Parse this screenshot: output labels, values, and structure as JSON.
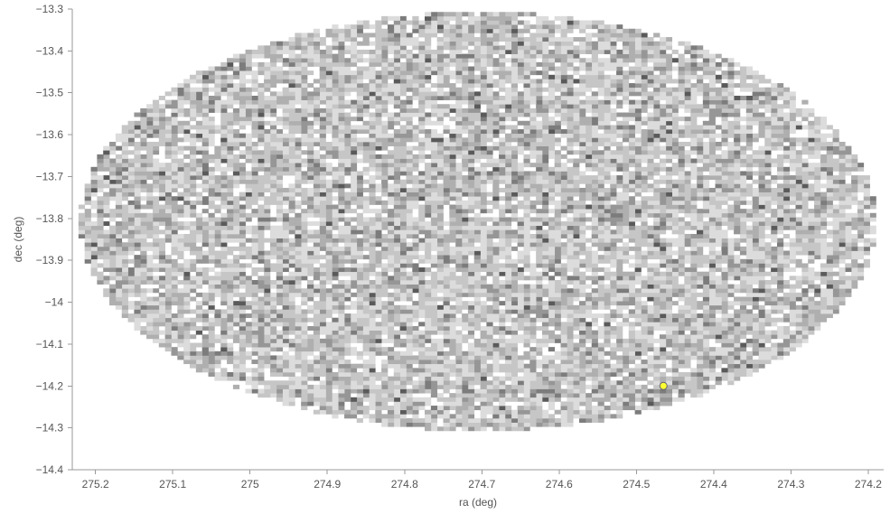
{
  "chart_data": {
    "type": "heatmap",
    "subtype": "binned-scatter-density",
    "title": "",
    "xlabel": "ra (deg)",
    "ylabel": "dec (deg)",
    "xlim": [
      275.23,
      274.18
    ],
    "ylim": [
      -14.4,
      -13.3
    ],
    "x_reversed": true,
    "grid": false,
    "legend": "none",
    "x_ticks": [
      {
        "value": 275.2,
        "label": "275.2"
      },
      {
        "value": 275.1,
        "label": "275.1"
      },
      {
        "value": 275.0,
        "label": "275"
      },
      {
        "value": 274.9,
        "label": "274.9"
      },
      {
        "value": 274.8,
        "label": "274.8"
      },
      {
        "value": 274.7,
        "label": "274.7"
      },
      {
        "value": 274.6,
        "label": "274.6"
      },
      {
        "value": 274.5,
        "label": "274.5"
      },
      {
        "value": 274.4,
        "label": "274.4"
      },
      {
        "value": 274.3,
        "label": "274.3"
      },
      {
        "value": 274.2,
        "label": "274.2"
      }
    ],
    "y_ticks": [
      {
        "value": -13.3,
        "label": "−13.3"
      },
      {
        "value": -13.4,
        "label": "−13.4"
      },
      {
        "value": -13.5,
        "label": "−13.5"
      },
      {
        "value": -13.6,
        "label": "−13.6"
      },
      {
        "value": -13.7,
        "label": "−13.7"
      },
      {
        "value": -13.8,
        "label": "−13.8"
      },
      {
        "value": -13.9,
        "label": "−13.9"
      },
      {
        "value": -14.0,
        "label": "−14"
      },
      {
        "value": -14.1,
        "label": "−14.1"
      },
      {
        "value": -14.2,
        "label": "−14.2"
      },
      {
        "value": -14.3,
        "label": "−14.3"
      },
      {
        "value": -14.4,
        "label": "−14.4"
      }
    ],
    "density_region": {
      "shape": "ellipse",
      "center": {
        "ra": 274.705,
        "dec": -13.807
      },
      "radius_ra": 0.515,
      "radius_dec": 0.5
    },
    "bin_size": {
      "ra": 0.008,
      "dec": 0.01
    },
    "gray_levels": [
      "#ffffff",
      "#dcdcdc",
      "#c6c6c6",
      "#afafaf",
      "#969696",
      "#7c7c7c",
      "#5a5a5a"
    ],
    "highlight_point": {
      "ra": 274.465,
      "dec": -14.2,
      "color": "#ffff33",
      "stroke": "#666666"
    }
  }
}
